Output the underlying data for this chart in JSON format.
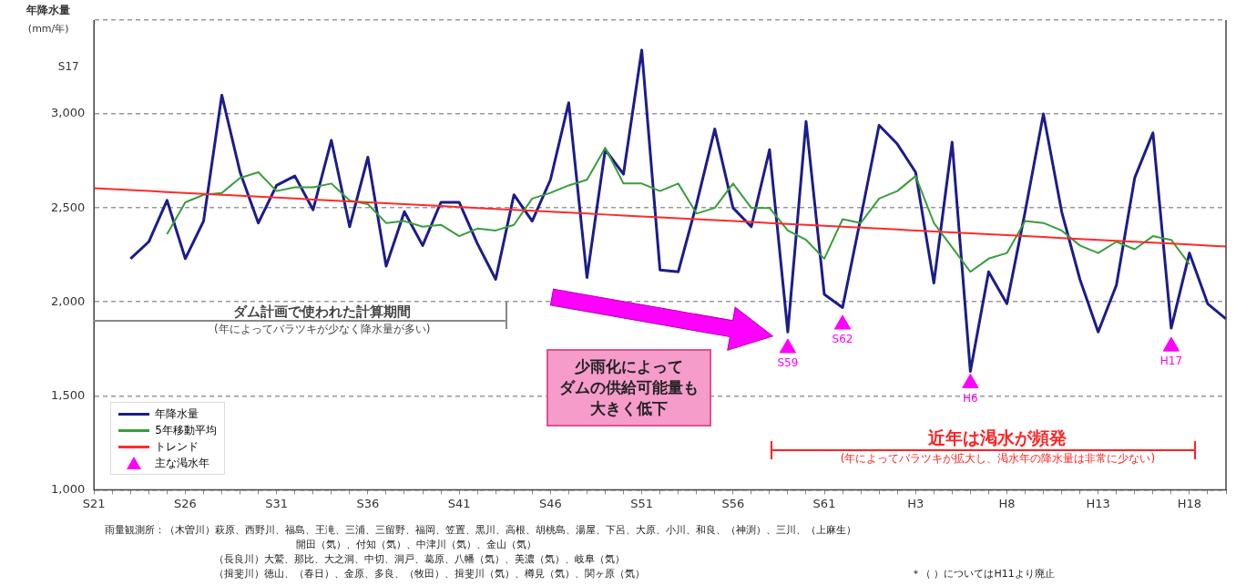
{
  "chart_data": {
    "type": "line",
    "ylabel": "年降水量\n(mm/年)",
    "categories": [
      "S21",
      null,
      null,
      null,
      null,
      "S26",
      null,
      null,
      null,
      null,
      "S31",
      null,
      null,
      null,
      null,
      "S36",
      null,
      null,
      null,
      null,
      "S41",
      null,
      null,
      null,
      null,
      "S46",
      null,
      null,
      null,
      null,
      "S51",
      null,
      null,
      null,
      null,
      "S56",
      null,
      null,
      null,
      null,
      "S61",
      null,
      null,
      null,
      null,
      "H3",
      null,
      null,
      null,
      null,
      "H8",
      null,
      null,
      null,
      null,
      "H13",
      null,
      null,
      null,
      null,
      "H18",
      null,
      null
    ],
    "series": [
      {
        "name": "年降水量",
        "color": "#1c1c8c",
        "values": [
          null,
          null,
          2230,
          2320,
          2540,
          2230,
          2430,
          3100,
          2690,
          2420,
          2620,
          2670,
          2490,
          2860,
          2400,
          2770,
          2190,
          2480,
          2300,
          2530,
          2530,
          2310,
          2120,
          2570,
          2430,
          2650,
          3060,
          2130,
          2810,
          2680,
          3340,
          2170,
          2160,
          2520,
          2920,
          2500,
          2400,
          2810,
          1840,
          2960,
          2040,
          1970,
          2450,
          2940,
          2840,
          2690,
          2100,
          2850,
          1630,
          2160,
          1990,
          2480,
          3000,
          2480,
          2120,
          1840,
          2090,
          2660,
          2900,
          1860,
          2260,
          1990,
          1910
        ]
      },
      {
        "name": "5年移動平均",
        "color": "#3a9d3a",
        "values": [
          null,
          null,
          null,
          null,
          2360,
          2530,
          2570,
          2580,
          2660,
          2690,
          2590,
          2610,
          2610,
          2630,
          2540,
          2520,
          2420,
          2430,
          2400,
          2410,
          2350,
          2390,
          2380,
          2410,
          2550,
          2580,
          2620,
          2650,
          2820,
          2630,
          2630,
          2590,
          2630,
          2470,
          2500,
          2630,
          2500,
          2500,
          2380,
          2330,
          2230,
          2440,
          2420,
          2550,
          2590,
          2670,
          2420,
          2290,
          2160,
          2230,
          2260,
          2430,
          2420,
          2380,
          2300,
          2260,
          2320,
          2280,
          2350,
          2330,
          2200,
          null,
          null
        ]
      },
      {
        "name": "トレンド",
        "color": "#ff2a2a",
        "values": [
          2605,
          2600,
          2595,
          2590,
          2585,
          2580,
          2575,
          2570,
          2565,
          2560,
          2555,
          2550,
          2545,
          2540,
          2535,
          2530,
          2525,
          2520,
          2515,
          2510,
          2505,
          2500,
          2495,
          2490,
          2485,
          2480,
          2475,
          2470,
          2465,
          2460,
          2455,
          2450,
          2445,
          2440,
          2435,
          2430,
          2425,
          2420,
          2415,
          2410,
          2405,
          2400,
          2395,
          2390,
          2385,
          2380,
          2375,
          2370,
          2365,
          2360,
          2355,
          2350,
          2345,
          2340,
          2335,
          2330,
          2325,
          2320,
          2315,
          2310,
          2305,
          2300,
          2295
        ]
      },
      {
        "name": "主な渇水年",
        "type": "scatter",
        "marker": "triangle",
        "color": "#ff00ff",
        "values": [
          null,
          null,
          null,
          null,
          null,
          null,
          null,
          null,
          null,
          null,
          null,
          null,
          null,
          null,
          null,
          null,
          null,
          null,
          null,
          null,
          null,
          null,
          null,
          null,
          null,
          null,
          null,
          null,
          null,
          null,
          null,
          null,
          null,
          null,
          null,
          null,
          null,
          null,
          1754,
          null,
          null,
          1880,
          null,
          null,
          null,
          null,
          null,
          null,
          1567,
          null,
          null,
          null,
          null,
          null,
          null,
          null,
          null,
          null,
          null,
          1763,
          null,
          null,
          null
        ]
      }
    ],
    "ylim": [
      1000,
      3500
    ],
    "yticks": [
      {
        "value": 1000,
        "label": "1,000"
      },
      {
        "value": 1500,
        "label": "1,500"
      },
      {
        "value": 2000,
        "label": "2,000"
      },
      {
        "value": 2500,
        "label": "2,500"
      },
      {
        "value": 3000,
        "label": "3,000"
      },
      {
        "value": 3500,
        "label": null
      }
    ],
    "grid": "y",
    "legend": "bottom left",
    "annotations": [
      "S17",
      "ダム計画で使われた計算期間",
      "(年によってバラツキが少なく降水量が多い)",
      "少雨化によって",
      "ダムの供給可能量も",
      "大きく低下",
      "近年は渇水が頻発",
      "(年によってバラツキが拡大し、渇水年の降水量は非常に少ない)",
      "S59",
      "S62",
      "H6",
      "H17",
      "雨量観測所：（木曽川）萩原、西野川、福島、王滝、三浦、三留野、福岡、笠置、黒川、高根、胡桃島、湯屋、下呂、大原、小川、和良、（神渕）、三川、（上麻生）",
      "開田（気）、付知（気）、中津川（気）、金山（気）",
      "（長良川）大鷲、那比、大之洞、中切、洞戸、葛原、八幡（気）、美濃（気）、岐阜（気）",
      "（揖斐川）徳山、（春日）、金原、多良、（牧田）、揖斐川（気）、樽見（気）、関ヶ原（気）",
      "＊（ ）についてはH11より廃止"
    ]
  }
}
